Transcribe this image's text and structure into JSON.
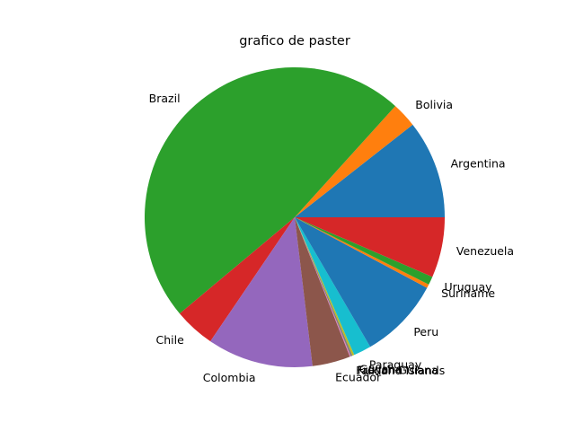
{
  "chart_data": {
    "type": "pie",
    "title": "grafico de paster",
    "start_angle_deg": 0,
    "direction": "counterclockwise",
    "labels": [
      "Argentina",
      "Bolivia",
      "Brazil",
      "Chile",
      "Colombia",
      "Ecuador",
      "Falkland Islands",
      "French Guiana",
      "Guyana",
      "Paraguay",
      "Peru",
      "Suriname",
      "Uruguay",
      "Venezuela"
    ],
    "values": [
      10.6,
      2.7,
      47.8,
      4.4,
      11.4,
      4.1,
      0.1,
      0.2,
      0.2,
      1.9,
      8.8,
      0.4,
      0.9,
      6.5
    ],
    "colors": [
      "#1f77b4",
      "#ff7f0e",
      "#2ca02c",
      "#d62728",
      "#9467bd",
      "#8c564b",
      "#e377c2",
      "#7f7f7f",
      "#bcbd22",
      "#17becf",
      "#1f77b4",
      "#ff7f0e",
      "#2ca02c",
      "#d62728"
    ]
  }
}
